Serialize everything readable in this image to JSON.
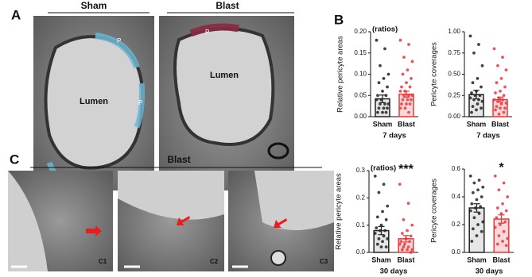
{
  "figure": {
    "panel_labels": [
      "A",
      "B",
      "C"
    ],
    "panel_a": {
      "groups": [
        "Sham",
        "Blast"
      ],
      "lumen": "Lumen",
      "pericyte": "P"
    },
    "panel_c": {
      "title": "Blast",
      "insets": [
        "C1",
        "C2",
        "C3"
      ]
    }
  },
  "chart_data": [
    {
      "type": "bar",
      "ylabel": "Relative pericyte areas",
      "annotation": "(ratios)",
      "xlabel": "7 days",
      "categories": [
        "Sham",
        "Blast"
      ],
      "colors": [
        "#222222",
        "#e8383d"
      ],
      "values": [
        0.042,
        0.053
      ],
      "errors": [
        0.009,
        0.007
      ],
      "points": [
        [
          0.18,
          0.16,
          0.12,
          0.1,
          0.09,
          0.08,
          0.07,
          0.06,
          0.05,
          0.05,
          0.04,
          0.04,
          0.03,
          0.03,
          0.03,
          0.02,
          0.02,
          0.02,
          0.01,
          0.01,
          0.01
        ],
        [
          0.18,
          0.17,
          0.14,
          0.13,
          0.11,
          0.1,
          0.09,
          0.08,
          0.07,
          0.07,
          0.06,
          0.06,
          0.05,
          0.05,
          0.05,
          0.04,
          0.04,
          0.04,
          0.03,
          0.03,
          0.03,
          0.02,
          0.02,
          0.01
        ]
      ],
      "ylim": [
        0,
        0.2
      ],
      "yticks": [
        {
          "value": 0,
          "label": "0.00"
        },
        0.05,
        {
          "value": 0.1,
          "label": "0.10"
        },
        0.15,
        {
          "value": 0.2,
          "label": "0.20"
        }
      ]
    },
    {
      "type": "bar",
      "ylabel": "Pericyte coverages",
      "xlabel": "7 days",
      "categories": [
        "Sham",
        "Blast"
      ],
      "colors": [
        "#222222",
        "#e8383d"
      ],
      "values": [
        0.26,
        0.2
      ],
      "errors": [
        0.05,
        0.03
      ],
      "points": [
        [
          0.95,
          0.85,
          0.75,
          0.6,
          0.45,
          0.4,
          0.35,
          0.3,
          0.28,
          0.25,
          0.25,
          0.22,
          0.2,
          0.2,
          0.18,
          0.15,
          0.12,
          0.1,
          0.08,
          0.05
        ],
        [
          0.8,
          0.7,
          0.6,
          0.55,
          0.45,
          0.4,
          0.35,
          0.3,
          0.28,
          0.25,
          0.22,
          0.2,
          0.2,
          0.18,
          0.16,
          0.15,
          0.12,
          0.1,
          0.1,
          0.08,
          0.05,
          0.03
        ]
      ],
      "ylim": [
        0,
        1
      ],
      "yticks": [
        {
          "value": 0,
          "label": "0.00"
        },
        0.25,
        {
          "value": 0.5,
          "label": "0.50"
        },
        0.75,
        {
          "value": 1,
          "label": "1.00"
        }
      ]
    },
    {
      "type": "bar",
      "ylabel": "Relative pericyte areas",
      "annotation": "(ratios)",
      "significance": "***",
      "xlabel": "30 days",
      "categories": [
        "Sham",
        "Blast"
      ],
      "colors": [
        "#222222",
        "#e8383d"
      ],
      "values": [
        0.08,
        0.05
      ],
      "errors": [
        0.015,
        0.012
      ],
      "points": [
        [
          0.28,
          0.25,
          0.22,
          0.17,
          0.15,
          0.13,
          0.12,
          0.1,
          0.09,
          0.08,
          0.08,
          0.07,
          0.06,
          0.05,
          0.05,
          0.04,
          0.03,
          0.02,
          0.02
        ],
        [
          0.25,
          0.18,
          0.12,
          0.1,
          0.08,
          0.07,
          0.06,
          0.05,
          0.04,
          0.04,
          0.03,
          0.03,
          0.02,
          0.02,
          0.01,
          0.01,
          0.01,
          0
        ]
      ],
      "ylim": [
        0,
        0.3
      ],
      "yticks": [
        {
          "value": 0,
          "label": "0.0"
        },
        0.1,
        0.2,
        0.3
      ]
    },
    {
      "type": "bar",
      "ylabel": "Pericyte coverages",
      "significance": "*",
      "xlabel": "30 days",
      "categories": [
        "Sham",
        "Blast"
      ],
      "colors": [
        "#222222",
        "#e8383d"
      ],
      "values": [
        0.32,
        0.24
      ],
      "errors": [
        0.03,
        0.03
      ],
      "points": [
        [
          0.55,
          0.52,
          0.5,
          0.47,
          0.45,
          0.43,
          0.4,
          0.38,
          0.35,
          0.33,
          0.32,
          0.3,
          0.28,
          0.25,
          0.22,
          0.2,
          0.17,
          0.15,
          0.12,
          0.08
        ],
        [
          0.55,
          0.5,
          0.45,
          0.4,
          0.35,
          0.32,
          0.3,
          0.28,
          0.25,
          0.22,
          0.2,
          0.18,
          0.15,
          0.12,
          0.1,
          0.08,
          0.06,
          0.05
        ]
      ],
      "ylim": [
        0,
        0.6
      ],
      "yticks": [
        {
          "value": 0,
          "label": "0.0"
        },
        0.2,
        0.4,
        0.6
      ]
    }
  ]
}
